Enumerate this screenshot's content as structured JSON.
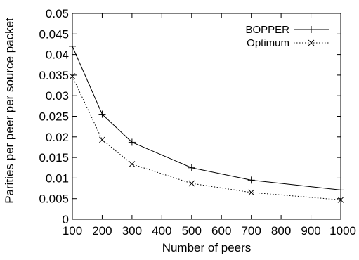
{
  "chart_data": {
    "type": "line",
    "title": "",
    "xlabel": "Number of peers",
    "ylabel": "Parities per peer per source packet",
    "xlim": [
      100,
      1000
    ],
    "ylim": [
      0,
      0.05
    ],
    "xticks": [
      "100",
      "200",
      "300",
      "400",
      "500",
      "600",
      "700",
      "800",
      "900",
      "1000"
    ],
    "yticks": [
      "0",
      "0.005",
      "0.01",
      "0.015",
      "0.02",
      "0.025",
      "0.03",
      "0.035",
      "0.04",
      "0.045",
      "0.05"
    ],
    "grid": false,
    "legend_position": "top-right",
    "series": [
      {
        "name": "BOPPER",
        "line_style": "solid",
        "marker": "plus",
        "color": "#000000",
        "x": [
          100,
          200,
          300,
          500,
          700,
          1000
        ],
        "y": [
          0.042,
          0.0255,
          0.0187,
          0.0125,
          0.0095,
          0.0071
        ]
      },
      {
        "name": "Optimum",
        "line_style": "dotted",
        "marker": "x",
        "color": "#000000",
        "x": [
          100,
          200,
          300,
          500,
          700,
          1000
        ],
        "y": [
          0.0347,
          0.0193,
          0.0134,
          0.0087,
          0.0065,
          0.0047
        ]
      }
    ]
  }
}
